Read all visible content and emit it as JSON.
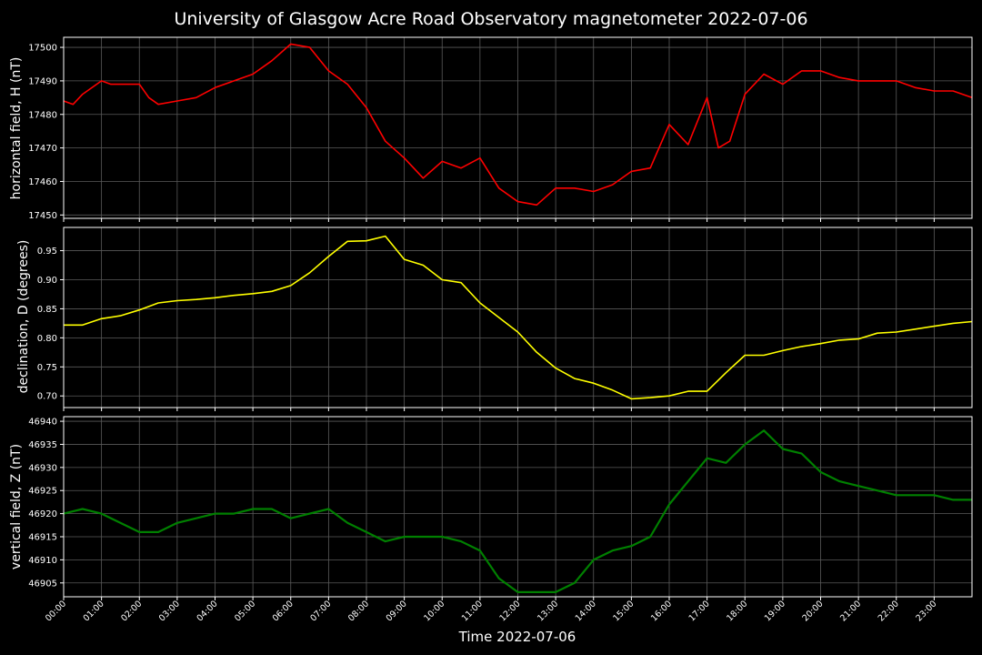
{
  "chart_data": [
    {
      "type": "line",
      "title": "University of Glasgow Acre Road Observatory magnetometer 2022-07-06",
      "xlabel": "Time 2022-07-06",
      "ylabel": "horizontal field, H (nT)",
      "color": "#ff0000",
      "ylim": [
        17449,
        17503
      ],
      "yticks": [
        17450,
        17460,
        17470,
        17480,
        17490,
        17500
      ],
      "x_hours": [
        0,
        0.25,
        0.5,
        1,
        1.25,
        1.5,
        2,
        2.25,
        2.5,
        3,
        3.5,
        4,
        4.5,
        5,
        5.5,
        6,
        6.5,
        7,
        7.5,
        8,
        8.5,
        9,
        9.5,
        10,
        10.5,
        11,
        11.5,
        12,
        12.5,
        13,
        13.5,
        14,
        14.5,
        15,
        15.5,
        16,
        16.5,
        17,
        17.3,
        17.6,
        18,
        18.5,
        19,
        19.5,
        20,
        20.5,
        21,
        22,
        22.5,
        23,
        23.5,
        24
      ],
      "values": [
        17484,
        17483,
        17486,
        17490,
        17489,
        17489,
        17489,
        17485,
        17483,
        17484,
        17485,
        17488,
        17490,
        17492,
        17496,
        17501,
        17500,
        17493,
        17489,
        17482,
        17472,
        17467,
        17461,
        17466,
        17464,
        17467,
        17458,
        17454,
        17453,
        17458,
        17458,
        17457,
        17459,
        17463,
        17464,
        17477,
        17471,
        17485,
        17470,
        17472,
        17486,
        17492,
        17489,
        17493,
        17493,
        17491,
        17490,
        17490,
        17488,
        17487,
        17487,
        17485
      ]
    },
    {
      "type": "line",
      "ylabel": "declination, D (degrees)",
      "color": "#ffff00",
      "ylim": [
        0.68,
        0.99
      ],
      "yticks": [
        0.7,
        0.75,
        0.8,
        0.85,
        0.9,
        0.95
      ],
      "ytick_labels": [
        "0.70",
        "0.75",
        "0.80",
        "0.85",
        "0.90",
        "0.95"
      ],
      "x_hours": [
        0,
        0.5,
        1,
        1.5,
        2,
        2.5,
        3,
        3.5,
        4,
        4.5,
        5,
        5.5,
        6,
        6.5,
        7,
        7.5,
        8,
        8.5,
        9,
        9.5,
        10,
        10.5,
        11,
        11.5,
        12,
        12.5,
        13,
        13.5,
        14,
        14.5,
        15,
        15.5,
        16,
        16.5,
        17,
        17.5,
        18,
        18.5,
        19,
        19.5,
        20,
        20.5,
        21,
        21.5,
        22,
        22.5,
        23,
        23.5,
        24
      ],
      "values": [
        0.822,
        0.822,
        0.833,
        0.838,
        0.848,
        0.86,
        0.864,
        0.866,
        0.869,
        0.873,
        0.876,
        0.88,
        0.89,
        0.912,
        0.94,
        0.966,
        0.967,
        0.975,
        0.935,
        0.925,
        0.9,
        0.895,
        0.86,
        0.835,
        0.81,
        0.775,
        0.748,
        0.73,
        0.722,
        0.71,
        0.695,
        0.697,
        0.7,
        0.708,
        0.708,
        0.74,
        0.77,
        0.77,
        0.778,
        0.785,
        0.79,
        0.796,
        0.798,
        0.808,
        0.81,
        0.815,
        0.82,
        0.825,
        0.828
      ]
    },
    {
      "type": "line",
      "ylabel": "vertical field, Z (nT)",
      "color": "#008000",
      "ylim": [
        46902,
        46941
      ],
      "yticks": [
        46905,
        46910,
        46915,
        46920,
        46925,
        46930,
        46935,
        46940
      ],
      "x_hours": [
        0,
        0.5,
        1,
        1.5,
        2,
        2.5,
        3,
        3.5,
        4,
        4.5,
        5,
        5.5,
        6,
        6.5,
        7,
        7.5,
        8,
        8.5,
        9,
        9.5,
        10,
        10.5,
        11,
        11.5,
        12,
        12.5,
        13,
        13.5,
        14,
        14.5,
        15,
        15.5,
        16,
        16.5,
        17,
        17.5,
        18,
        18.5,
        19,
        19.5,
        20,
        20.5,
        21,
        21.5,
        22,
        22.5,
        23,
        23.5,
        24
      ],
      "values": [
        46920,
        46921,
        46920,
        46918,
        46916,
        46916,
        46918,
        46919,
        46920,
        46920,
        46921,
        46921,
        46919,
        46920,
        46921,
        46918,
        46916,
        46914,
        46915,
        46915,
        46915,
        46914,
        46912,
        46906,
        46903,
        46903,
        46903,
        46905,
        46910,
        46912,
        46913,
        46915,
        46922,
        46927,
        46932,
        46931,
        46935,
        46938,
        46934,
        46933,
        46929,
        46927,
        46926,
        46925,
        46924,
        46924,
        46924,
        46923,
        46923
      ]
    }
  ],
  "xticks": {
    "labels": [
      "00:00",
      "01:00",
      "02:00",
      "03:00",
      "04:00",
      "05:00",
      "06:00",
      "07:00",
      "08:00",
      "09:00",
      "10:00",
      "11:00",
      "12:00",
      "13:00",
      "14:00",
      "15:00",
      "16:00",
      "17:00",
      "18:00",
      "19:00",
      "20:00",
      "21:00",
      "22:00",
      "23:00"
    ],
    "hours": [
      0,
      1,
      2,
      3,
      4,
      5,
      6,
      7,
      8,
      9,
      10,
      11,
      12,
      13,
      14,
      15,
      16,
      17,
      18,
      19,
      20,
      21,
      22,
      23
    ],
    "xlim_hours": [
      0,
      24
    ]
  },
  "grid": true
}
